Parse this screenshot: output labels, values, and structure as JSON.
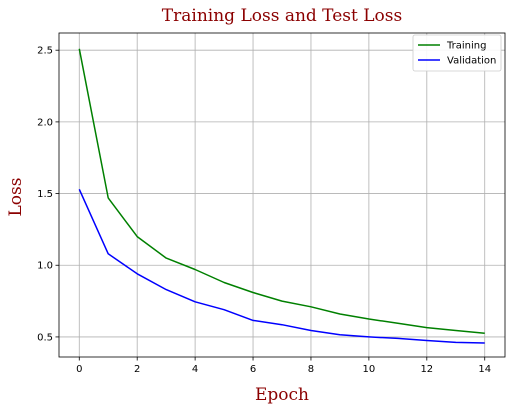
{
  "chart_data": {
    "type": "line",
    "title": "Training Loss and Test Loss",
    "xlabel": "Epoch",
    "ylabel": "Loss",
    "x": [
      0,
      1,
      2,
      3,
      4,
      5,
      6,
      7,
      8,
      9,
      10,
      11,
      12,
      13,
      14
    ],
    "xlim": [
      -0.7,
      14.7
    ],
    "ylim": [
      0.36,
      2.62
    ],
    "xticks": [
      0,
      2,
      4,
      6,
      8,
      10,
      12,
      14
    ],
    "yticks": [
      0.5,
      1.0,
      1.5,
      2.0,
      2.5
    ],
    "grid": true,
    "legend_position": "top-right",
    "series": [
      {
        "name": "Training",
        "color": "#008000",
        "values": [
          2.51,
          1.47,
          1.2,
          1.05,
          0.97,
          0.88,
          0.81,
          0.75,
          0.71,
          0.66,
          0.625,
          0.595,
          0.565,
          0.545,
          0.525
        ]
      },
      {
        "name": "Validation",
        "color": "#0000ff",
        "values": [
          1.53,
          1.08,
          0.94,
          0.83,
          0.745,
          0.69,
          0.615,
          0.585,
          0.545,
          0.515,
          0.5,
          0.49,
          0.475,
          0.462,
          0.458
        ]
      }
    ]
  }
}
